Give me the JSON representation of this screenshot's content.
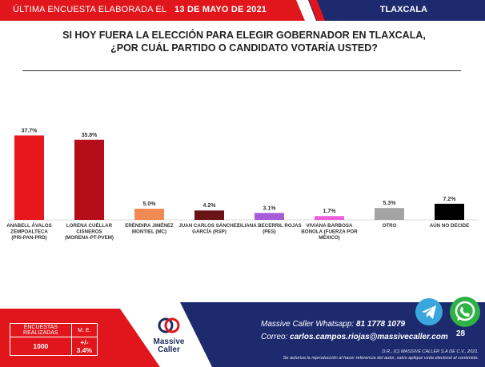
{
  "header": {
    "prefix": "ÚLTIMA ENCUESTA ELABORADA EL",
    "date": "13 DE MAYO DE 2021",
    "region": "TLAXCALA"
  },
  "question": {
    "line1": "SI HOY FUERA LA ELECCIÓN PARA ELEGIR GOBERNADOR EN TLAXCALA,",
    "line2": "¿POR CUÁL PARTIDO O CANDIDATO VOTARÍA USTED?"
  },
  "chart_data": {
    "type": "bar",
    "categories": [
      [
        "ANABELL ÁVALOS",
        "ZEMPOALTECA",
        "(PRI-PAN-PRD)"
      ],
      [
        "LORENA CUÉLLAR",
        "CISNEROS",
        "(MORENA-PT-PVEM)"
      ],
      [
        "ERÉNDIRA JIMÉNEZ",
        "MONTIEL (MC)"
      ],
      [
        "JUAN CARLOS SÁNCHEZ",
        "GARCÍA (RSP)"
      ],
      [
        "LILIANA BECERRIL ROJAS",
        "(PES)"
      ],
      [
        "VIVIANA BARBOSA",
        "BONOLA (FUERZA POR",
        "MÉXICO)"
      ],
      [
        "OTRO"
      ],
      [
        "AÚN NO DECIDE"
      ]
    ],
    "values": [
      37.7,
      35.8,
      5.0,
      4.2,
      3.1,
      1.7,
      5.3,
      7.2
    ],
    "value_labels": [
      "37.7%",
      "35.8%",
      "5.0%",
      "4.2%",
      "3.1%",
      "1.7%",
      "5.3%",
      "7.2%"
    ],
    "colors": [
      "#e8171b",
      "#b50d19",
      "#f08a52",
      "#6a1418",
      "#a65bd9",
      "#ef5fd9",
      "#a3a3a3",
      "#000000"
    ],
    "ylim": [
      0,
      40
    ]
  },
  "stats": {
    "col1_label": "ENCUESTAS REALIZADAS",
    "col2_label": "M. E.",
    "col1_value": "1000",
    "col2_value": "+/- 3.4%"
  },
  "logo": {
    "line1": "Massive",
    "line2": "Caller"
  },
  "contact": {
    "whatsapp_label": "Massive Caller Whatsapp:",
    "whatsapp_number": "81 1778 1079",
    "email_label": "Correo:",
    "email": "carlos.campos.riojas@massivecaller.com"
  },
  "legal": {
    "line1": "D.R., (C) MASSIVE CALLER S.A DE C.V., 2021.",
    "line2": "Se autoriza la reproducción al hacer referencia del autor, salvo aplique veda electoral al contenido."
  },
  "social": {
    "whatsapp_count": "28"
  }
}
